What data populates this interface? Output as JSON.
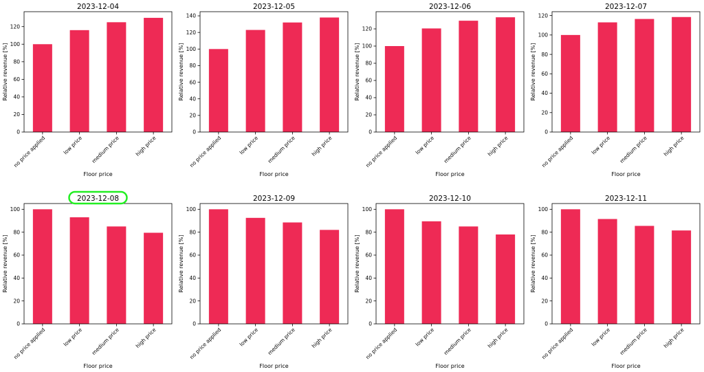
{
  "colors": {
    "bar": "#ee2a55",
    "highlight": "#22ee22"
  },
  "highlighted_title": "2023-12-08",
  "chart_data": [
    {
      "type": "bar",
      "title": "2023-12-04",
      "xlabel": "Floor price",
      "ylabel": "Relative revenue [%]",
      "categories": [
        "no price applied",
        "low price",
        "medium price",
        "high price"
      ],
      "values": [
        100,
        116,
        125,
        130
      ],
      "ylim": [
        0,
        137
      ],
      "yticks": [
        0,
        20,
        40,
        60,
        80,
        100,
        120
      ]
    },
    {
      "type": "bar",
      "title": "2023-12-05",
      "xlabel": "Floor price",
      "ylabel": "Relative revenue [%]",
      "categories": [
        "no price applied",
        "low price",
        "medium price",
        "high price"
      ],
      "values": [
        100,
        123,
        132,
        138
      ],
      "ylim": [
        0,
        145
      ],
      "yticks": [
        0,
        20,
        40,
        60,
        80,
        100,
        120,
        140
      ]
    },
    {
      "type": "bar",
      "title": "2023-12-06",
      "xlabel": "Floor price",
      "ylabel": "Relative revenue [%]",
      "categories": [
        "no price applied",
        "low price",
        "medium price",
        "high price"
      ],
      "values": [
        100,
        120.5,
        129.5,
        133.5
      ],
      "ylim": [
        0,
        140
      ],
      "yticks": [
        0,
        20,
        40,
        60,
        80,
        100,
        120
      ]
    },
    {
      "type": "bar",
      "title": "2023-12-07",
      "xlabel": "Floor price",
      "ylabel": "Relative revenue [%]",
      "categories": [
        "no price applied",
        "low price",
        "medium price",
        "high price"
      ],
      "values": [
        100,
        113,
        116.5,
        118.5
      ],
      "ylim": [
        0,
        124
      ],
      "yticks": [
        0,
        20,
        40,
        60,
        80,
        100,
        120
      ]
    },
    {
      "type": "bar",
      "title": "2023-12-08",
      "xlabel": "Floor price",
      "ylabel": "Relative revenue [%]",
      "categories": [
        "no price applied",
        "low price",
        "medium price",
        "high price"
      ],
      "values": [
        100,
        93,
        85,
        79.5
      ],
      "ylim": [
        0,
        105
      ],
      "yticks": [
        0,
        20,
        40,
        60,
        80,
        100
      ]
    },
    {
      "type": "bar",
      "title": "2023-12-09",
      "xlabel": "Floor price",
      "ylabel": "Relative revenue [%]",
      "categories": [
        "no price applied",
        "low price",
        "medium price",
        "high price"
      ],
      "values": [
        100,
        92.5,
        88.5,
        82
      ],
      "ylim": [
        0,
        105
      ],
      "yticks": [
        0,
        20,
        40,
        60,
        80,
        100
      ]
    },
    {
      "type": "bar",
      "title": "2023-12-10",
      "xlabel": "Floor price",
      "ylabel": "Relative revenue [%]",
      "categories": [
        "no price applied",
        "low price",
        "medium price",
        "high price"
      ],
      "values": [
        100,
        89.5,
        85,
        78
      ],
      "ylim": [
        0,
        105
      ],
      "yticks": [
        0,
        20,
        40,
        60,
        80,
        100
      ]
    },
    {
      "type": "bar",
      "title": "2023-12-11",
      "xlabel": "Floor price",
      "ylabel": "Relative revenue [%]",
      "categories": [
        "no price applied",
        "low price",
        "medium price",
        "high price"
      ],
      "values": [
        100,
        91.5,
        85.5,
        81.5
      ],
      "ylim": [
        0,
        105
      ],
      "yticks": [
        0,
        20,
        40,
        60,
        80,
        100
      ]
    }
  ]
}
